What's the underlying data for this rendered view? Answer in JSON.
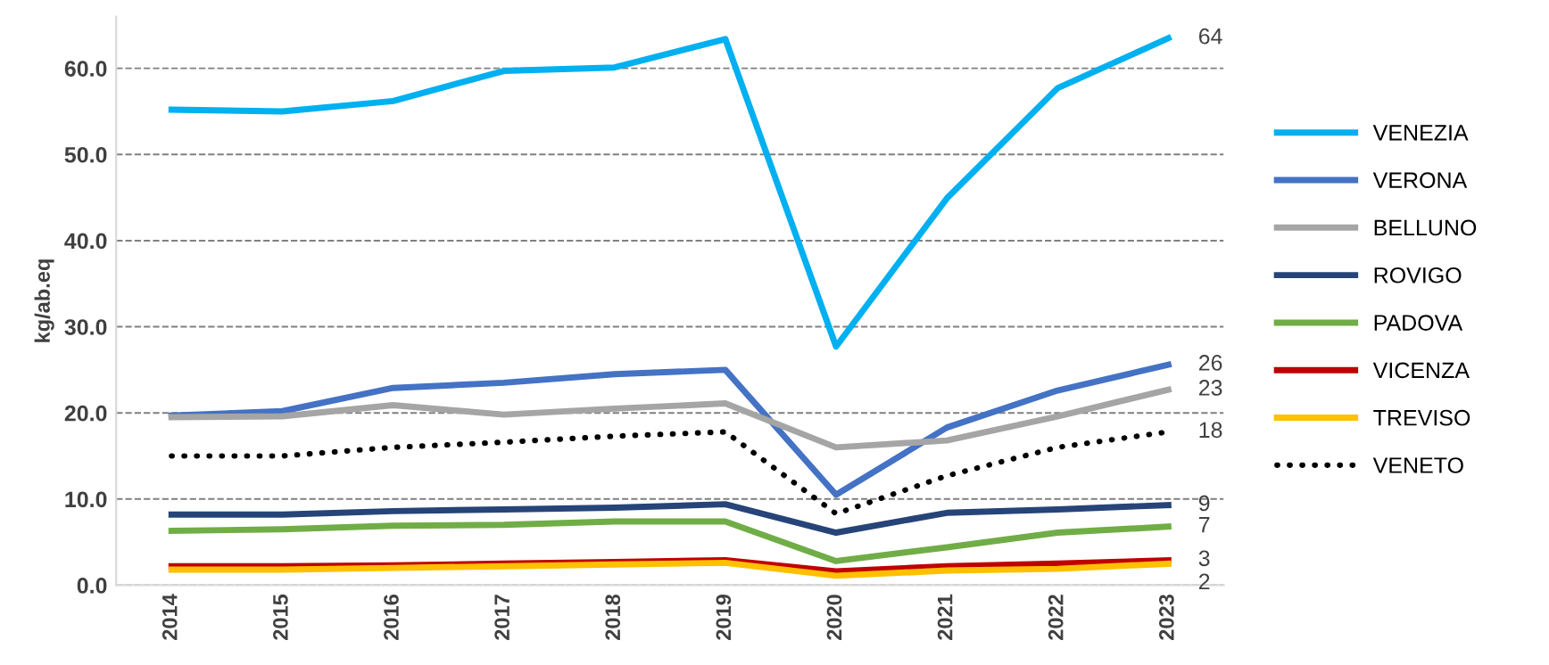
{
  "chart_data": {
    "type": "line",
    "ylabel": "kg/ab.eq",
    "categories": [
      "2014",
      "2015",
      "2016",
      "2017",
      "2018",
      "2019",
      "2020",
      "2021",
      "2022",
      "2023"
    ],
    "series": [
      {
        "name": "VENEZIA",
        "color": "#00b0f0",
        "values": [
          55.2,
          55.0,
          56.2,
          59.7,
          60.1,
          63.4,
          27.7,
          44.9,
          57.7,
          63.5
        ],
        "value_labels": [
          null,
          null,
          null,
          null,
          null,
          null,
          null,
          null,
          null,
          "64"
        ]
      },
      {
        "name": "VERONA",
        "color": "#4472c4",
        "values": [
          19.7,
          20.2,
          22.9,
          23.5,
          24.5,
          25.0,
          10.5,
          18.3,
          22.6,
          25.6
        ],
        "value_labels": [
          null,
          null,
          null,
          null,
          null,
          null,
          null,
          null,
          null,
          "26"
        ]
      },
      {
        "name": "BELLUNO",
        "color": "#a5a5a5",
        "values": [
          19.5,
          19.6,
          20.9,
          19.8,
          20.5,
          21.1,
          16.0,
          16.8,
          19.6,
          22.7
        ],
        "value_labels": [
          null,
          null,
          null,
          null,
          null,
          null,
          null,
          null,
          null,
          "23"
        ]
      },
      {
        "name": "ROVIGO",
        "color": "#264478",
        "values": [
          8.2,
          8.2,
          8.6,
          8.8,
          9.0,
          9.4,
          6.1,
          8.4,
          8.8,
          9.3
        ],
        "value_labels": [
          null,
          null,
          null,
          null,
          null,
          null,
          null,
          null,
          null,
          "9"
        ]
      },
      {
        "name": "PADOVA",
        "color": "#70ad47",
        "values": [
          6.3,
          6.5,
          6.9,
          7.0,
          7.4,
          7.4,
          2.8,
          4.4,
          6.1,
          6.8
        ],
        "value_labels": [
          null,
          null,
          null,
          null,
          null,
          null,
          null,
          null,
          null,
          "7"
        ]
      },
      {
        "name": "VICENZA",
        "color": "#c00000",
        "values": [
          2.2,
          2.2,
          2.3,
          2.5,
          2.7,
          2.9,
          1.6,
          2.2,
          2.5,
          2.9
        ],
        "value_labels": [
          null,
          null,
          null,
          null,
          null,
          null,
          null,
          null,
          null,
          "3"
        ]
      },
      {
        "name": "TREVISO",
        "color": "#ffc000",
        "values": [
          1.8,
          1.8,
          2.0,
          2.2,
          2.4,
          2.6,
          1.1,
          1.7,
          1.9,
          2.5
        ],
        "value_labels": [
          null,
          null,
          null,
          null,
          null,
          null,
          null,
          null,
          null,
          "2"
        ]
      },
      {
        "name": "VENETO",
        "color": "#000000",
        "line_style": "dotted",
        "values": [
          15.0,
          15.0,
          16.0,
          16.6,
          17.3,
          17.8,
          8.3,
          12.7,
          16.0,
          17.8
        ],
        "value_labels": [
          null,
          null,
          null,
          null,
          null,
          null,
          null,
          null,
          null,
          "18"
        ]
      }
    ],
    "ylim": [
      0,
      66
    ],
    "yticks": [
      {
        "value": 0,
        "label": "0.0"
      },
      {
        "value": 10,
        "label": "10.0"
      },
      {
        "value": 20,
        "label": "20.0"
      },
      {
        "value": 30,
        "label": "30.0"
      },
      {
        "value": 40,
        "label": "40.0"
      },
      {
        "value": 50,
        "label": "50.0"
      },
      {
        "value": 60,
        "label": "60.0"
      }
    ],
    "grid": "y",
    "legend": "right",
    "line_style": "solid",
    "marker": "none"
  }
}
